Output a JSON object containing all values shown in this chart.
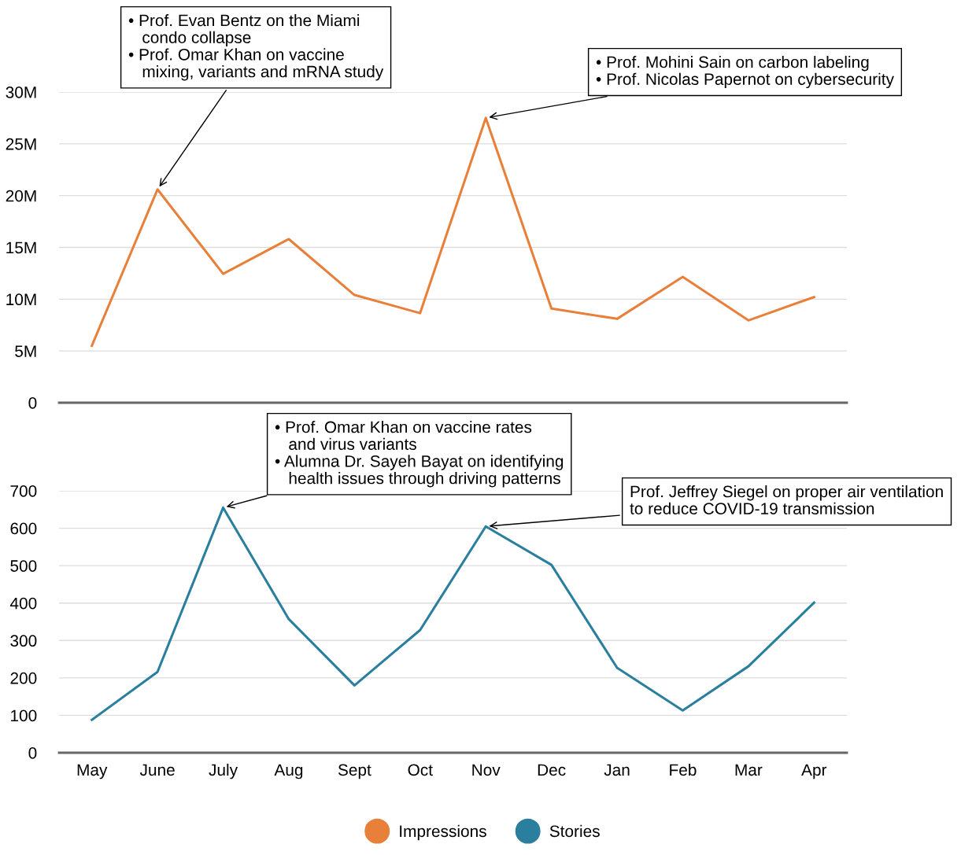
{
  "chart_data": [
    {
      "type": "line",
      "categories": [
        "May",
        "June",
        "July",
        "Aug",
        "Sept",
        "Oct",
        "Nov",
        "Dec",
        "Jan",
        "Feb",
        "Mar",
        "Apr"
      ],
      "series": [
        {
          "name": "Impressions",
          "color": "#e8803a",
          "values": [
            5500000,
            20600000,
            12450000,
            15800000,
            10400000,
            8650000,
            27500000,
            9100000,
            8100000,
            12150000,
            7950000,
            10200000
          ]
        }
      ],
      "ylim": [
        0,
        30000000
      ],
      "yticks": [
        0,
        {
          "value": 5000000,
          "label": "5M"
        },
        {
          "value": 10000000,
          "label": "10M"
        },
        {
          "value": 15000000,
          "label": "15M"
        },
        {
          "value": 20000000,
          "label": "20M"
        },
        {
          "value": 25000000,
          "label": "25M"
        },
        {
          "value": 30000000,
          "label": "30M"
        }
      ],
      "tick_labels": "y",
      "grid": "y",
      "marker": "none",
      "annotations": [
        {
          "text": "• Prof. Evan Bentz on the Miami\n   condo collapse\n• Prof. Omar Khan on vaccine\n   mixing, variants and mRNA study",
          "x": "June",
          "y": 20600000
        },
        {
          "text": "• Prof. Mohini Sain on carbon labeling\n• Prof. Nicolas Papernot on cybersecurity",
          "x": "Nov",
          "y": 27500000
        }
      ]
    },
    {
      "type": "line",
      "categories": [
        "May",
        "June",
        "July",
        "Aug",
        "Sept",
        "Oct",
        "Nov",
        "Dec",
        "Jan",
        "Feb",
        "Mar",
        "Apr"
      ],
      "series": [
        {
          "name": "Stories",
          "color": "#2a7f9e",
          "values": [
            88,
            216,
            655,
            357,
            180,
            328,
            605,
            502,
            227,
            113,
            231,
            401
          ]
        }
      ],
      "ylim": [
        0,
        700
      ],
      "yticks": [
        0,
        100,
        200,
        300,
        400,
        500,
        600,
        700
      ],
      "grid": "y",
      "marker": "none",
      "legend": "bottom",
      "annotations": [
        {
          "text": "• Prof. Omar Khan on vaccine rates\n   and virus variants\n• Alumna Dr. Sayeh Bayat on identifying\n   health issues through driving patterns",
          "x": "July",
          "y": 655
        },
        {
          "text": "Prof. Jeffrey Siegel on proper air ventilation\nto reduce COVID-19 transmission",
          "x": "Nov",
          "y": 605
        }
      ]
    }
  ]
}
